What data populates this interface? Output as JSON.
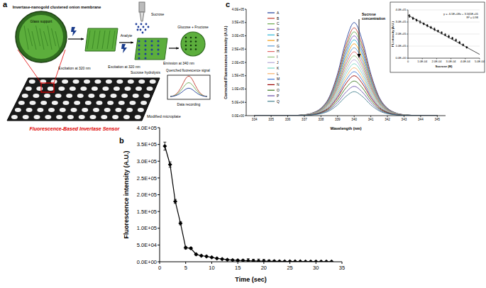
{
  "diagram": {
    "title": "a",
    "membrane": "Invertase-nanogold clustered onion membrane",
    "glass": "Glass support",
    "excitation_1": "Excitation at 320 nm",
    "sucrose": "Sucrose",
    "analyte": "Analyte",
    "excitation_2": "Excitation at 320 nm",
    "hydrolysis": "Sucrose hydrolysis",
    "emission": "Emission at 340 nm",
    "products": "Glucose + Fructose",
    "quenched": "Quenched fluorescence signal",
    "recording": "Data recording",
    "microplate": "Modified microplate",
    "sensor": "Fluorescence-Based Invertase Sensor"
  },
  "chart_data": [
    {
      "type": "line",
      "title": "b",
      "x_label": "Time (sec)",
      "y_label": "Fluorescence intensity (A.U.)",
      "x": [
        1,
        2,
        3,
        4,
        5,
        6,
        7,
        8,
        9,
        10,
        11,
        12,
        13,
        14,
        15,
        16,
        17,
        18,
        19,
        20,
        21,
        22,
        23,
        24,
        25,
        26,
        27,
        28,
        29,
        30,
        31,
        32,
        33
      ],
      "values": [
        345000,
        290000,
        180000,
        115000,
        42000,
        40000,
        22000,
        18000,
        16000,
        13000,
        10000,
        8000,
        6000,
        5000,
        4000,
        3500,
        3000,
        2500,
        2000,
        2000,
        1500,
        1500,
        1200,
        1000,
        1000,
        800,
        800,
        600,
        600,
        500,
        500,
        400,
        400
      ],
      "errors": [
        12000,
        8000,
        6000,
        5000,
        4000,
        3000,
        3000,
        2500,
        2500,
        2000,
        2000,
        2000,
        2000,
        2000,
        2500,
        3000,
        6000,
        5000,
        6000,
        5000,
        4000,
        3000,
        2500,
        2000,
        2000,
        2000,
        1500,
        1500,
        1500,
        1500,
        1500,
        1500,
        1500
      ],
      "color": "#000000",
      "marker": "diamond",
      "line_style": "solid",
      "grid": false,
      "xlim": [
        0,
        35
      ],
      "ylim": [
        0,
        400000
      ],
      "xticks": [
        0,
        5,
        10,
        15,
        20,
        25,
        30,
        35
      ],
      "yticks": [
        {
          "value": 0,
          "label": "0.0E+00"
        },
        {
          "value": 50000,
          "label": "5.0E+04"
        },
        {
          "value": 100000,
          "label": "1.0E+05"
        },
        {
          "value": 150000,
          "label": "1.5E+05"
        },
        {
          "value": 200000,
          "label": "2.0E+05"
        },
        {
          "value": 250000,
          "label": "2.5E+05"
        },
        {
          "value": 300000,
          "label": "3.0E+05"
        },
        {
          "value": 350000,
          "label": "3.5E+05"
        },
        {
          "value": 400000,
          "label": "4.0E+05"
        }
      ]
    },
    {
      "type": "line",
      "title": "c",
      "x_label": "Wavelength (nm)",
      "y_label": "Corrected Fluorescence intensity (A.U.)",
      "x": [
        334,
        336,
        337,
        337.5,
        338,
        338.5,
        339,
        339.5,
        340,
        340.5,
        341,
        341.5,
        342,
        342.5,
        343,
        344,
        345
      ],
      "series": [
        {
          "name": "A",
          "color": "#1f3d99",
          "values": [
            0,
            0,
            3500,
            10500,
            28000,
            70000,
            157500,
            280000,
            350000,
            280000,
            157500,
            70000,
            28000,
            10500,
            3500,
            0,
            0
          ]
        },
        {
          "name": "B",
          "color": "#c0392b",
          "values": [
            0,
            0,
            3300,
            9900,
            26400,
            66000,
            148500,
            264000,
            330000,
            264000,
            148500,
            66000,
            26400,
            9900,
            3300,
            0,
            0
          ]
        },
        {
          "name": "C",
          "color": "#6aa84f",
          "values": [
            0,
            0,
            3150,
            9450,
            25200,
            63000,
            141750,
            252000,
            315000,
            252000,
            141750,
            63000,
            25200,
            9450,
            3150,
            0,
            0
          ]
        },
        {
          "name": "D",
          "color": "#7e57c2",
          "values": [
            0,
            0,
            3000,
            9000,
            24000,
            60000,
            135000,
            240000,
            300000,
            240000,
            135000,
            60000,
            24000,
            9000,
            3000,
            0,
            0
          ]
        },
        {
          "name": "E",
          "color": "#29b6d6",
          "values": [
            0,
            0,
            2850,
            8550,
            22800,
            57000,
            128250,
            228000,
            285000,
            228000,
            128250,
            57000,
            22800,
            8550,
            2850,
            0,
            0
          ]
        },
        {
          "name": "F",
          "color": "#f39c12",
          "values": [
            0,
            0,
            2700,
            8100,
            21600,
            54000,
            121500,
            216000,
            270000,
            216000,
            121500,
            54000,
            21600,
            8100,
            2700,
            0,
            0
          ]
        },
        {
          "name": "G",
          "color": "#5b9bd5",
          "values": [
            0,
            0,
            2550,
            7650,
            20400,
            51000,
            114750,
            204000,
            255000,
            204000,
            114750,
            51000,
            20400,
            7650,
            2550,
            0,
            0
          ]
        },
        {
          "name": "H",
          "color": "#e06666",
          "values": [
            0,
            0,
            2400,
            7200,
            19200,
            48000,
            108000,
            192000,
            240000,
            192000,
            108000,
            48000,
            19200,
            7200,
            2400,
            0,
            0
          ]
        },
        {
          "name": "I",
          "color": "#93c47d",
          "values": [
            0,
            0,
            2250,
            6750,
            18000,
            45000,
            101250,
            180000,
            225000,
            180000,
            101250,
            45000,
            18000,
            6750,
            2250,
            0,
            0
          ]
        },
        {
          "name": "J",
          "color": "#b4a7d6",
          "values": [
            0,
            0,
            2100,
            6300,
            16800,
            42000,
            94500,
            168000,
            210000,
            168000,
            94500,
            42000,
            16800,
            6300,
            2100,
            0,
            0
          ]
        },
        {
          "name": "K",
          "color": "#76d7c4",
          "values": [
            0,
            0,
            1950,
            5850,
            15600,
            39000,
            87750,
            156000,
            195000,
            156000,
            87750,
            39000,
            15600,
            5850,
            1950,
            0,
            0
          ]
        },
        {
          "name": "L",
          "color": "#f6b26b",
          "values": [
            0,
            0,
            1800,
            5400,
            14400,
            36000,
            81000,
            144000,
            180000,
            144000,
            81000,
            36000,
            14400,
            5400,
            1800,
            0,
            0
          ]
        },
        {
          "name": "M",
          "color": "#3c78d8",
          "values": [
            0,
            0,
            1650,
            4950,
            13200,
            33000,
            74250,
            132000,
            165000,
            132000,
            74250,
            33000,
            13200,
            4950,
            1650,
            0,
            0
          ]
        },
        {
          "name": "N",
          "color": "#990000",
          "values": [
            0,
            0,
            1500,
            4500,
            12000,
            30000,
            67500,
            120000,
            150000,
            120000,
            67500,
            30000,
            12000,
            4500,
            1500,
            0,
            0
          ]
        },
        {
          "name": "O",
          "color": "#38761d",
          "values": [
            0,
            0,
            1300,
            3900,
            10400,
            26000,
            58500,
            104000,
            130000,
            104000,
            58500,
            26000,
            10400,
            3900,
            1300,
            0,
            0
          ]
        },
        {
          "name": "P",
          "color": "#674ea7",
          "values": [
            0,
            0,
            1100,
            3300,
            8800,
            22000,
            49500,
            88000,
            110000,
            88000,
            49500,
            22000,
            8800,
            3300,
            1100,
            0,
            0
          ]
        },
        {
          "name": "Q",
          "color": "#45818e",
          "values": [
            0,
            0,
            900,
            2700,
            7200,
            18000,
            40500,
            72000,
            90000,
            72000,
            40500,
            18000,
            7200,
            2700,
            900,
            0,
            0
          ]
        }
      ],
      "legend": "upper left",
      "line_style": "smooth",
      "grid": false,
      "annotations": [
        "Sucrose concentration"
      ],
      "xlim": [
        333.5,
        345.5
      ],
      "ylim": [
        0,
        400000
      ],
      "xticks": [
        334,
        335,
        336,
        337,
        338,
        339,
        340,
        341,
        342,
        343,
        344,
        345
      ],
      "yticks": [
        {
          "value": 0,
          "label": "0.0E+00"
        },
        {
          "value": 50000,
          "label": "5.0E+04"
        },
        {
          "value": 100000,
          "label": "1.0E+05"
        },
        {
          "value": 150000,
          "label": "1.5E+05"
        },
        {
          "value": 200000,
          "label": "2.0E+05"
        },
        {
          "value": 250000,
          "label": "2.5E+05"
        },
        {
          "value": 300000,
          "label": "3.0E+05"
        },
        {
          "value": 350000,
          "label": "3.5E+05"
        },
        {
          "value": 400000,
          "label": "4.0E+05"
        }
      ]
    },
    {
      "type": "scatter",
      "x_label": "Sucrose (M)",
      "y_label": "FL intensity (A.U.)",
      "x": [
        1e-05,
        3.5e-05,
        6e-05,
        8.5e-05,
        0.00011,
        0.000135,
        0.00016,
        0.000185,
        0.00021,
        0.000235,
        0.00026,
        0.000285,
        0.00031,
        0.000335,
        0.00036,
        0.000385,
        0.00041
      ],
      "values": [
        350000,
        330000,
        315000,
        300000,
        285000,
        270000,
        255000,
        240000,
        225000,
        210000,
        195000,
        180000,
        165000,
        150000,
        130000,
        110000,
        90000
      ],
      "errors": [
        12000,
        10000,
        9000,
        11000,
        8000,
        10000,
        9000,
        12000,
        8000,
        10000,
        9000,
        11000,
        8000,
        9000,
        10000,
        8000,
        7000
      ],
      "trendline": {
        "x": [
          0,
          0.0005
        ],
        "values": [
          356500,
          31500
        ]
      },
      "annotations": [
        "y = -6.5E+08x + 3.565E+05",
        "R² = 0.98"
      ],
      "color": "#000000",
      "marker": "diamond",
      "grid": true,
      "xlim": [
        0,
        0.0005
      ],
      "ylim": [
        0,
        400000
      ],
      "xticks": [
        0,
        {
          "value": 0.0001,
          "label": "1.0E-04"
        },
        {
          "value": 0.0002,
          "label": "2.0E-04"
        },
        {
          "value": 0.0003,
          "label": "3.0E-04"
        },
        {
          "value": 0.0004,
          "label": "4.0E-04"
        },
        {
          "value": 0.0005,
          "label": "5.0E-04"
        }
      ],
      "yticks": [
        {
          "value": 0,
          "label": "0.0E+00"
        },
        {
          "value": 100000,
          "label": "1.0E+05"
        },
        {
          "value": 200000,
          "label": "2.0E+05"
        },
        {
          "value": 300000,
          "label": "3.0E+05"
        },
        {
          "value": 400000,
          "label": "4.0E+05"
        }
      ]
    }
  ]
}
